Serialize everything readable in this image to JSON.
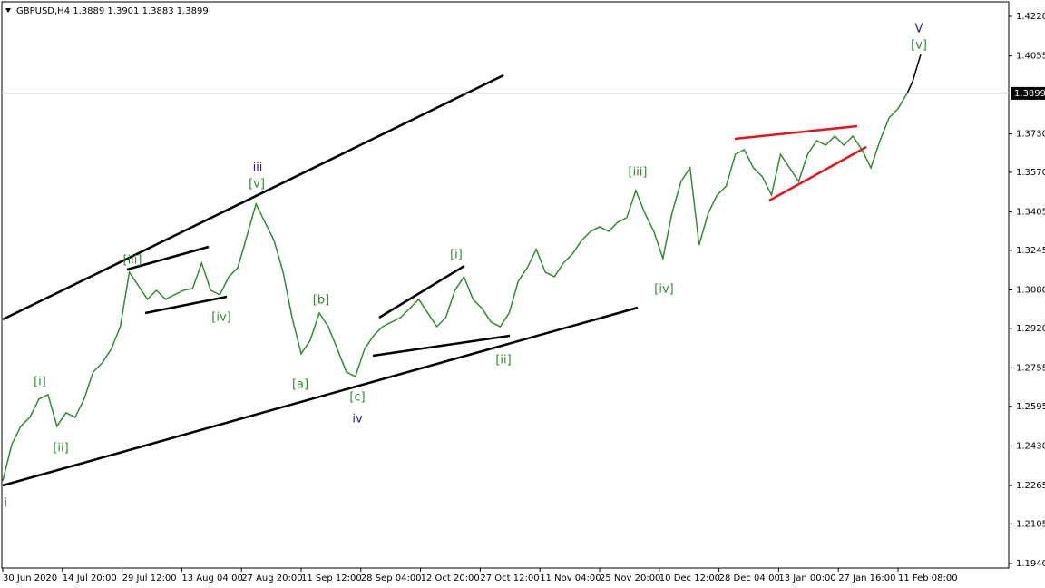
{
  "chart_data": {
    "type": "line",
    "title": "GBPUSD,H4  1.3889 1.3901 1.3883 1.3899",
    "color": "#2e8b2e",
    "values": [
      1.2285,
      1.2436,
      1.2512,
      1.2549,
      1.2625,
      1.2644,
      1.2512,
      1.2568,
      1.2549,
      1.2625,
      1.2738,
      1.2776,
      1.2833,
      1.2927,
      1.3154,
      1.3097,
      1.3041,
      1.3078,
      1.3041,
      1.306,
      1.3078,
      1.3086,
      1.3192,
      1.3078,
      1.306,
      1.3135,
      1.3173,
      1.3305,
      1.3438,
      1.3362,
      1.3286,
      1.3154,
      1.2965,
      1.2814,
      1.287,
      1.2984,
      1.2927,
      1.2833,
      1.2738,
      1.2719,
      1.2833,
      1.2889,
      1.2927,
      1.2946,
      1.2965,
      1.3003,
      1.3041,
      1.2984,
      1.2927,
      1.2965,
      1.3078,
      1.3135,
      1.3041,
      1.3003,
      1.2946,
      1.2927,
      1.2984,
      1.3116,
      1.3173,
      1.3249,
      1.3154,
      1.3135,
      1.3192,
      1.323,
      1.3286,
      1.3324,
      1.3343,
      1.3324,
      1.3362,
      1.3381,
      1.3494,
      1.34,
      1.3324,
      1.3211,
      1.34,
      1.3532,
      1.3589,
      1.3267,
      1.34,
      1.3475,
      1.3513,
      1.3645,
      1.3664,
      1.3589,
      1.3551,
      1.3475,
      1.3645,
      1.3589,
      1.3532,
      1.3645,
      1.3702,
      1.3683,
      1.3721,
      1.3683,
      1.3721,
      1.3664,
      1.3589,
      1.3702,
      1.3797,
      1.3835,
      1.3899
    ],
    "ylim": [
      1.194,
      1.422
    ],
    "yticks": [
      {
        "value": 1.422,
        "label": "1.4220"
      },
      {
        "value": 1.4055,
        "label": "1.4055"
      },
      {
        "value": 1.373,
        "label": "1.3730"
      },
      {
        "value": 1.357,
        "label": "1.3570"
      },
      {
        "value": 1.3405,
        "label": "1.3405"
      },
      {
        "value": 1.3245,
        "label": "1.3245"
      },
      {
        "value": 1.308,
        "label": "1.3080"
      },
      {
        "value": 1.292,
        "label": "1.2920"
      },
      {
        "value": 1.2755,
        "label": "1.2755"
      },
      {
        "value": 1.2595,
        "label": "1.2595"
      },
      {
        "value": 1.243,
        "label": "1.2430"
      },
      {
        "value": 1.2265,
        "label": "1.2265"
      },
      {
        "value": 1.2105,
        "label": "1.2105"
      },
      {
        "value": 1.194,
        "label": "1.1940"
      }
    ],
    "current_price": {
      "value": 1.3899,
      "label": "1.3899"
    },
    "xtick_labels": [
      "30 Jun 2020",
      "14 Jul 20:00",
      "29 Jul 12:00",
      "13 Aug 04:00",
      "27 Aug 20:00",
      "11 Sep 12:00",
      "28 Sep 04:00",
      "12 Oct 20:00",
      "27 Oct 12:00",
      "11 Nov 04:00",
      "25 Nov 20:00",
      "10 Dec 12:00",
      "28 Dec 04:00",
      "13 Jan 00:00",
      "27 Jan 16:00",
      "11 Feb 08:00"
    ],
    "annotations": [
      {
        "text": "i",
        "color": "#1f1f8f"
      },
      {
        "text": "[i]",
        "color": "#2e8b2e"
      },
      {
        "text": "[ii]",
        "color": "#2e8b2e"
      },
      {
        "text": "[iii]",
        "color": "#2e8b2e"
      },
      {
        "text": "[iv]",
        "color": "#2e8b2e"
      },
      {
        "text": "iii",
        "color": "#1f1f8f"
      },
      {
        "text": "[v]",
        "color": "#2e8b2e"
      },
      {
        "text": "[a]",
        "color": "#2e8b2e"
      },
      {
        "text": "[b]",
        "color": "#2e8b2e"
      },
      {
        "text": "[c]",
        "color": "#2e8b2e"
      },
      {
        "text": "iv",
        "color": "#1f1f8f"
      },
      {
        "text": "[i]",
        "color": "#2e8b2e"
      },
      {
        "text": "[ii]",
        "color": "#2e8b2e"
      },
      {
        "text": "[iii]",
        "color": "#2e8b2e"
      },
      {
        "text": "[iv]",
        "color": "#2e8b2e"
      },
      {
        "text": "V",
        "color": "#1f1f8f"
      },
      {
        "text": "[v]",
        "color": "#2e8b2e"
      }
    ]
  }
}
